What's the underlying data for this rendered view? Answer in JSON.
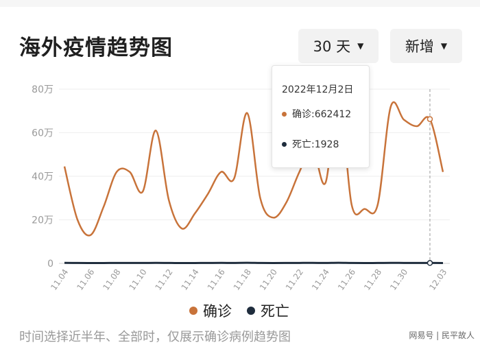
{
  "title": "海外疫情趋势图",
  "controls": {
    "days_label": "30 天",
    "metric_label": "新增"
  },
  "tooltip": {
    "date": "2022年12月2日",
    "confirmed": "确诊:662412",
    "deaths": "死亡:1928"
  },
  "legend": {
    "confirmed": "确诊",
    "deaths": "死亡"
  },
  "footer": "时间选择近半年、全部时，仅展示确诊病例趋势图",
  "watermark": "网易号 | 民平故人",
  "colors": {
    "confirmed": "#c8733a",
    "deaths": "#1f2d3d"
  },
  "chart_data": {
    "type": "line",
    "categories": [
      "11.04",
      "11.05",
      "11.06",
      "11.07",
      "11.08",
      "11.09",
      "11.10",
      "11.11",
      "11.12",
      "11.13",
      "11.14",
      "11.15",
      "11.16",
      "11.17",
      "11.18",
      "11.19",
      "11.20",
      "11.21",
      "11.22",
      "11.23",
      "11.24",
      "11.25",
      "11.26",
      "11.27",
      "11.28",
      "11.29",
      "11.30",
      "12.01",
      "12.02",
      "12.03"
    ],
    "tick_labels": [
      "11.04",
      "11.06",
      "11.08",
      "11.10",
      "11.12",
      "11.14",
      "11.16",
      "11.18",
      "11.20",
      "11.22",
      "11.24",
      "11.26",
      "11.28",
      "11.30",
      "12.03"
    ],
    "y_tick_labels": [
      "0",
      "20万",
      "40万",
      "60万",
      "80万"
    ],
    "ylim": [
      0,
      800000
    ],
    "series": [
      {
        "name": "确诊",
        "values": [
          445000,
          200000,
          130000,
          260000,
          420000,
          420000,
          330000,
          610000,
          290000,
          160000,
          230000,
          320000,
          420000,
          390000,
          690000,
          300000,
          210000,
          280000,
          420000,
          530000,
          370000,
          790000,
          270000,
          250000,
          270000,
          720000,
          660000,
          630000,
          662412,
          420000
        ]
      },
      {
        "name": "死亡",
        "values": [
          2500,
          1800,
          1600,
          1700,
          2100,
          1900,
          1800,
          2300,
          1900,
          1600,
          1700,
          1900,
          2200,
          2100,
          2600,
          1900,
          1700,
          1800,
          2100,
          2300,
          2000,
          2700,
          1800,
          1700,
          1800,
          2300,
          2100,
          2000,
          1928,
          1600
        ]
      }
    ]
  }
}
